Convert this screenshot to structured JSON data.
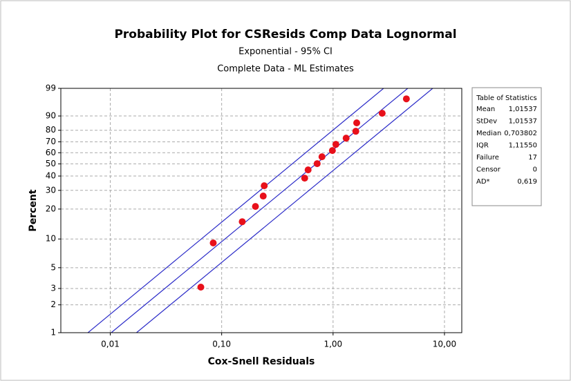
{
  "chart_data": {
    "type": "scatter",
    "title": "Probability Plot for CSResids Comp Data Lognormal",
    "subtitle": [
      "Exponential - 95% CI",
      "Complete Data - ML Estimates"
    ],
    "x_label": "Cox-Snell Residuals",
    "y_label": "Percent",
    "x_scale": "log",
    "y_scale": "exponential-probability",
    "grid": true,
    "xlim": [
      0.0036,
      14.3
    ],
    "ylim": [
      1,
      99
    ],
    "xticks": [
      {
        "value": 0.01,
        "label": "0,01"
      },
      {
        "value": 0.1,
        "label": "0,10"
      },
      {
        "value": 1,
        "label": "1,00"
      },
      {
        "value": 10,
        "label": "10,00"
      }
    ],
    "yticks": [
      1,
      2,
      3,
      5,
      10,
      20,
      30,
      40,
      50,
      60,
      70,
      80,
      90,
      99
    ],
    "series": [
      {
        "color": "#e8101a",
        "x": [
          0.065,
          0.084,
          0.153,
          0.201,
          0.236,
          0.241,
          0.556,
          0.597,
          0.72,
          0.795,
          0.986,
          1.06,
          1.31,
          1.6,
          1.63,
          2.76,
          4.55
        ],
        "values": [
          3.1,
          9.1,
          15.0,
          21.2,
          26.6,
          33.0,
          38.4,
          44.9,
          50.2,
          56.3,
          62.0,
          67.7,
          73.3,
          79.2,
          85.6,
          91.5,
          97.1
        ]
      }
    ],
    "lines": [
      {
        "color": "#2b2bc8",
        "x": [
          0.0102,
          4.68
        ],
        "values": [
          1,
          99
        ]
      },
      {
        "color": "#2b2bc8",
        "x": [
          0.0063,
          2.84
        ],
        "values": [
          1,
          99
        ]
      },
      {
        "color": "#2b2bc8",
        "x": [
          0.0172,
          7.84
        ],
        "values": [
          1,
          99
        ]
      }
    ],
    "stats_table": {
      "title": "Table of Statistics",
      "rows": [
        [
          "Mean",
          "1,01537"
        ],
        [
          "StDev",
          "1,01537"
        ],
        [
          "Median",
          "0,703802"
        ],
        [
          "IQR",
          "1,11550"
        ],
        [
          "Failure",
          "17"
        ],
        [
          "Censor",
          "0"
        ],
        [
          "AD*",
          "0,619"
        ]
      ]
    }
  }
}
